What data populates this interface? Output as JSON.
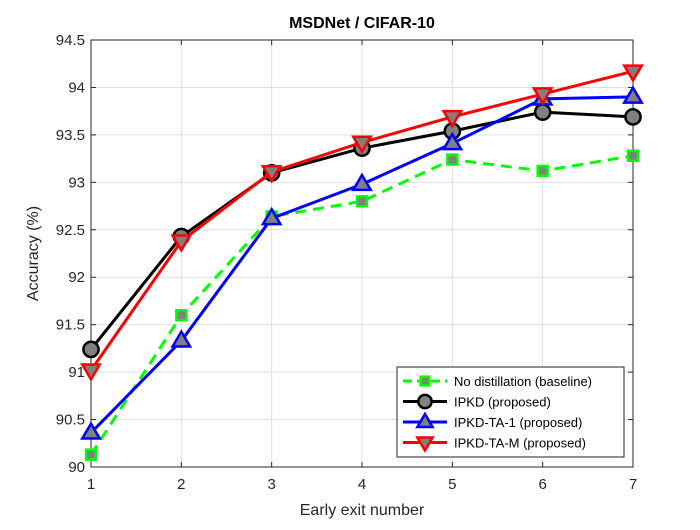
{
  "chart_data": {
    "type": "line",
    "title": "MSDNet / CIFAR-10",
    "xlabel": "Early exit number",
    "ylabel": "Accuracy (%)",
    "x": [
      1,
      2,
      3,
      4,
      5,
      6,
      7
    ],
    "xlim": [
      1,
      7
    ],
    "ylim": [
      90,
      94.5
    ],
    "xticks": [
      "1",
      "2",
      "3",
      "4",
      "5",
      "6",
      "7"
    ],
    "yticks": [
      "90",
      "90.5",
      "91",
      "91.5",
      "92",
      "92.5",
      "93",
      "93.5",
      "94",
      "94.5"
    ],
    "grid": true,
    "legend_position": "bottom-right",
    "series": [
      {
        "name": "No distillation (baseline)",
        "values": [
          90.13,
          91.6,
          92.64,
          92.8,
          93.24,
          93.12,
          93.28
        ],
        "color": "#00ff00",
        "line_style": "dashed",
        "marker": "square",
        "marker_fill": "#808080"
      },
      {
        "name": "IPKD (proposed)",
        "values": [
          91.24,
          92.43,
          93.1,
          93.36,
          93.54,
          93.74,
          93.69
        ],
        "color": "#000000",
        "line_style": "solid",
        "marker": "circle",
        "marker_fill": "#808080"
      },
      {
        "name": "IPKD-TA-1 (proposed)",
        "values": [
          90.36,
          91.33,
          92.62,
          92.98,
          93.41,
          93.88,
          93.9
        ],
        "color": "#0000ff",
        "line_style": "solid",
        "marker": "triangle-up",
        "marker_fill": "#808080"
      },
      {
        "name": "IPKD-TA-M (proposed)",
        "values": [
          91.02,
          92.38,
          93.11,
          93.42,
          93.69,
          93.93,
          94.17
        ],
        "color": "#ff0000",
        "line_style": "solid",
        "marker": "triangle-down",
        "marker_fill": "#808080"
      }
    ]
  }
}
